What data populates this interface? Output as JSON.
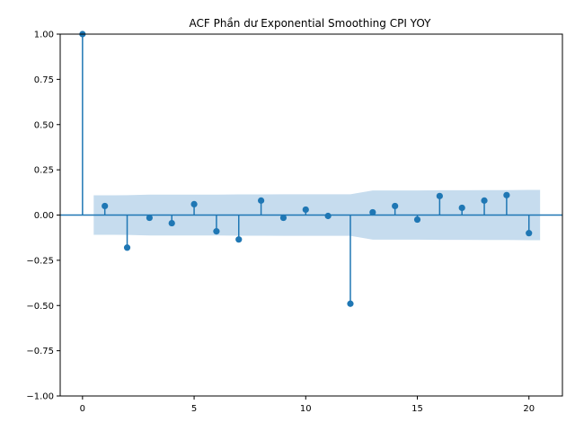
{
  "chart_data": {
    "type": "stem",
    "title": "ACF Phần dư Exponential Smoothing CPI YOY",
    "xlabel": "",
    "ylabel": "",
    "xlim": [
      -1,
      21.5
    ],
    "ylim": [
      -1.0,
      1.0
    ],
    "x_ticks": [
      0,
      5,
      10,
      15,
      20
    ],
    "y_ticks": [
      1.0,
      0.75,
      0.5,
      0.25,
      0.0,
      -0.25,
      -0.5,
      -0.75,
      -1.0
    ],
    "x_tick_labels": [
      "0",
      "5",
      "10",
      "15",
      "20"
    ],
    "y_tick_labels": [
      "1.00",
      "0.75",
      "0.50",
      "0.25",
      "0.00",
      "−0.25",
      "−0.50",
      "−0.75",
      "−1.00"
    ],
    "grid": false,
    "lags": [
      0,
      1,
      2,
      3,
      4,
      5,
      6,
      7,
      8,
      9,
      10,
      11,
      12,
      13,
      14,
      15,
      16,
      17,
      18,
      19,
      20
    ],
    "values": [
      1.0,
      0.05,
      -0.18,
      -0.015,
      -0.045,
      0.06,
      -0.09,
      -0.135,
      0.08,
      -0.015,
      0.03,
      -0.005,
      -0.49,
      0.015,
      0.05,
      -0.025,
      0.105,
      0.04,
      0.08,
      0.11,
      -0.1
    ],
    "confidence_interval": {
      "lags": [
        0.5,
        1,
        2,
        3,
        4,
        5,
        6,
        7,
        8,
        9,
        10,
        11,
        12,
        13,
        14,
        15,
        16,
        17,
        18,
        19,
        20,
        20.5
      ],
      "upper": [
        0.109,
        0.109,
        0.11,
        0.113,
        0.113,
        0.113,
        0.113,
        0.114,
        0.114,
        0.115,
        0.115,
        0.115,
        0.115,
        0.136,
        0.136,
        0.136,
        0.137,
        0.137,
        0.138,
        0.138,
        0.139,
        0.139
      ]
    },
    "colors": {
      "stem": "#1f77b4",
      "band": "#c6dcee",
      "axis": "#000000"
    }
  }
}
